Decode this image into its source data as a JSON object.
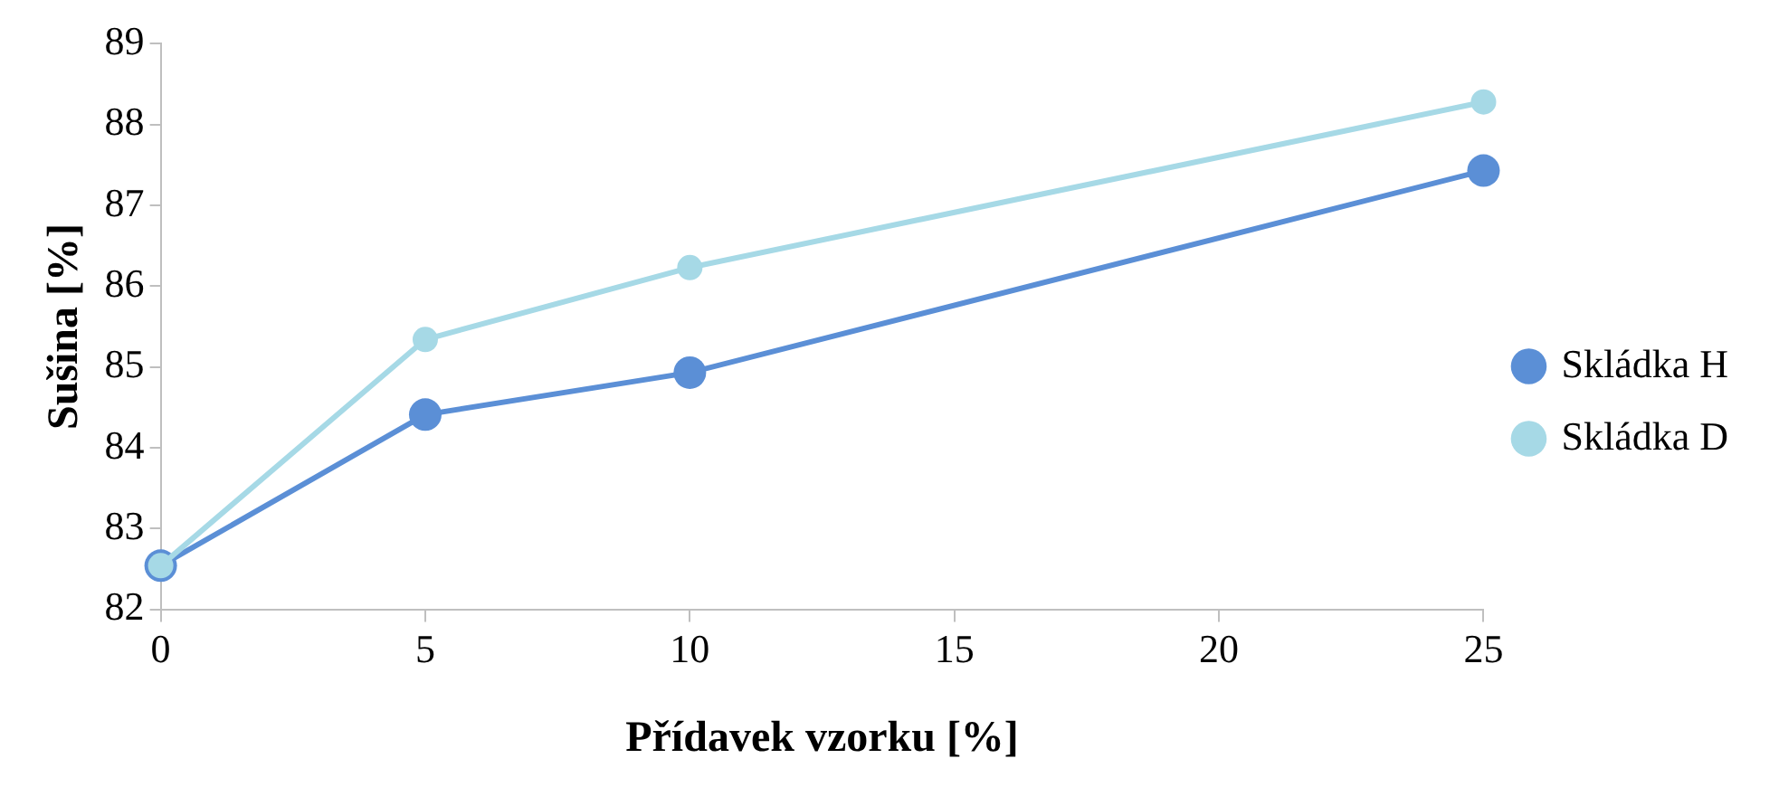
{
  "chart_data": {
    "type": "line",
    "xlabel": "Přídavek vzorku [%]",
    "ylabel": "Sušina [%]",
    "x": [
      0,
      5,
      10,
      25
    ],
    "series": [
      {
        "name": "Skládka H",
        "color": "#5b8fd6",
        "values": [
          82.54,
          84.41,
          84.93,
          87.43
        ]
      },
      {
        "name": "Skládka D",
        "color": "#a6d9e6",
        "values": [
          82.54,
          85.34,
          86.23,
          88.28
        ]
      }
    ],
    "xlim": [
      0,
      25
    ],
    "xticks": [
      0,
      5,
      10,
      15,
      20,
      25
    ],
    "ylim": [
      82,
      89
    ],
    "yticks": [
      82,
      83,
      84,
      85,
      86,
      87,
      88,
      89
    ],
    "grid": false,
    "legend": "right",
    "marker": "circle",
    "line_style": "solid"
  }
}
